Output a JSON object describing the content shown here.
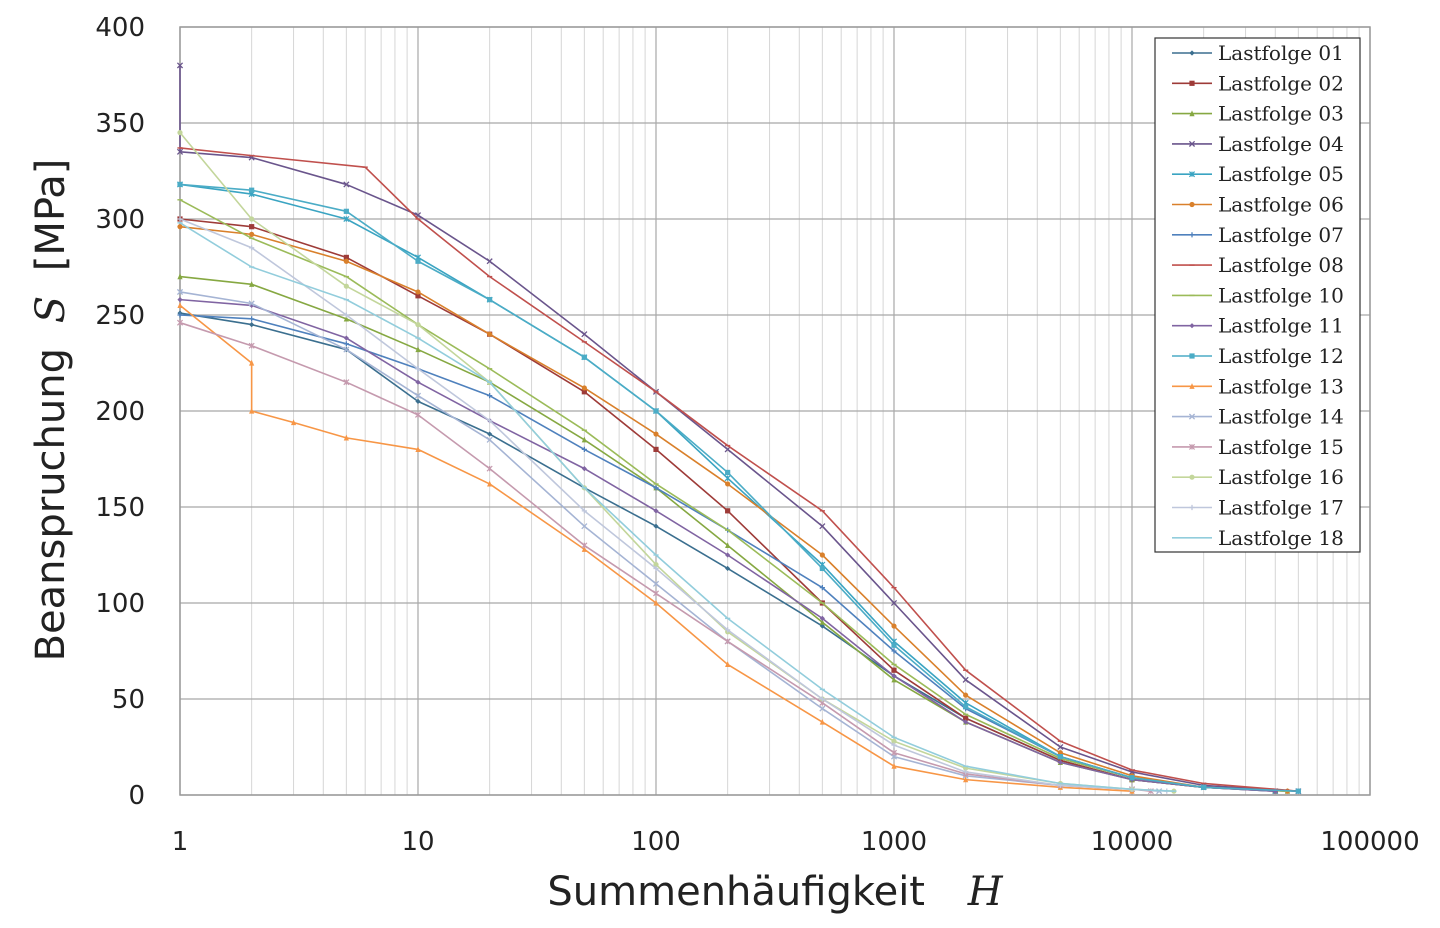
{
  "chart_data": {
    "type": "line",
    "xscale": "log",
    "xlim": [
      1,
      100000
    ],
    "ylim": [
      0,
      400
    ],
    "grid": true,
    "legend_position": "top-right",
    "xlabel": {
      "text": "Summenhäufigkeit",
      "symbol": "H"
    },
    "ylabel": {
      "text": "Beanspruchung",
      "symbol": "S",
      "unit": "[MPa]"
    },
    "x_ticks": [
      {
        "v": 1,
        "label": "1"
      },
      {
        "v": 10,
        "label": "10"
      },
      {
        "v": 100,
        "label": "100"
      },
      {
        "v": 1000,
        "label": "1000"
      },
      {
        "v": 10000,
        "label": "10000"
      },
      {
        "v": 100000,
        "label": "100000"
      }
    ],
    "y_ticks": [
      {
        "v": 0,
        "label": "0"
      },
      {
        "v": 50,
        "label": "50"
      },
      {
        "v": 100,
        "label": "100"
      },
      {
        "v": 150,
        "label": "150"
      },
      {
        "v": 200,
        "label": "200"
      },
      {
        "v": 250,
        "label": "250"
      },
      {
        "v": 300,
        "label": "300"
      },
      {
        "v": 350,
        "label": "350"
      },
      {
        "v": 400,
        "label": "400"
      }
    ],
    "series": [
      {
        "name": "Lastfolge 01",
        "color": "#3b6f8f",
        "marker": "diamond",
        "points": [
          [
            1,
            251
          ],
          [
            2,
            245
          ],
          [
            5,
            232
          ],
          [
            10,
            205
          ],
          [
            20,
            188
          ],
          [
            50,
            160
          ],
          [
            100,
            140
          ],
          [
            200,
            118
          ],
          [
            500,
            88
          ],
          [
            1000,
            62
          ],
          [
            2000,
            40
          ],
          [
            5000,
            18
          ],
          [
            10000,
            8
          ],
          [
            20000,
            4
          ],
          [
            50000,
            2
          ]
        ]
      },
      {
        "name": "Lastfolge 02",
        "color": "#9e3b38",
        "marker": "square",
        "points": [
          [
            1,
            300
          ],
          [
            2,
            296
          ],
          [
            5,
            280
          ],
          [
            10,
            260
          ],
          [
            20,
            240
          ],
          [
            50,
            210
          ],
          [
            100,
            180
          ],
          [
            200,
            148
          ],
          [
            500,
            100
          ],
          [
            1000,
            65
          ],
          [
            2000,
            40
          ],
          [
            5000,
            18
          ],
          [
            10000,
            8
          ],
          [
            20000,
            4
          ],
          [
            40000,
            2
          ]
        ]
      },
      {
        "name": "Lastfolge 03",
        "color": "#86a842",
        "marker": "triangle",
        "points": [
          [
            1,
            270
          ],
          [
            2,
            266
          ],
          [
            5,
            248
          ],
          [
            10,
            232
          ],
          [
            20,
            215
          ],
          [
            50,
            185
          ],
          [
            100,
            160
          ],
          [
            200,
            130
          ],
          [
            500,
            90
          ],
          [
            1000,
            60
          ],
          [
            2000,
            38
          ],
          [
            5000,
            17
          ],
          [
            10000,
            8
          ],
          [
            20000,
            4
          ],
          [
            45000,
            2
          ]
        ]
      },
      {
        "name": "Lastfolge 04",
        "color": "#6a558c",
        "marker": "x",
        "points": [
          [
            1,
            380
          ],
          [
            1,
            335
          ],
          [
            2,
            332
          ],
          [
            5,
            318
          ],
          [
            10,
            302
          ],
          [
            20,
            278
          ],
          [
            50,
            240
          ],
          [
            100,
            210
          ],
          [
            200,
            180
          ],
          [
            500,
            140
          ],
          [
            1000,
            100
          ],
          [
            2000,
            60
          ],
          [
            5000,
            25
          ],
          [
            10000,
            12
          ],
          [
            20000,
            5
          ],
          [
            50000,
            2
          ]
        ]
      },
      {
        "name": "Lastfolge 05",
        "color": "#3aa4c2",
        "marker": "star",
        "points": [
          [
            1,
            318
          ],
          [
            2,
            313
          ],
          [
            5,
            300
          ],
          [
            10,
            280
          ],
          [
            20,
            258
          ],
          [
            50,
            228
          ],
          [
            100,
            200
          ],
          [
            200,
            165
          ],
          [
            500,
            120
          ],
          [
            1000,
            80
          ],
          [
            2000,
            48
          ],
          [
            5000,
            20
          ],
          [
            10000,
            9
          ],
          [
            20000,
            4
          ],
          [
            40000,
            2
          ]
        ]
      },
      {
        "name": "Lastfolge 06",
        "color": "#d9802b",
        "marker": "circle",
        "points": [
          [
            1,
            296
          ],
          [
            2,
            292
          ],
          [
            5,
            278
          ],
          [
            10,
            262
          ],
          [
            20,
            240
          ],
          [
            50,
            212
          ],
          [
            100,
            188
          ],
          [
            200,
            162
          ],
          [
            500,
            125
          ],
          [
            1000,
            88
          ],
          [
            2000,
            52
          ],
          [
            5000,
            22
          ],
          [
            10000,
            10
          ],
          [
            20000,
            4
          ],
          [
            45000,
            2
          ]
        ]
      },
      {
        "name": "Lastfolge 07",
        "color": "#4f81bd",
        "marker": "plus",
        "points": [
          [
            1,
            250
          ],
          [
            2,
            248
          ],
          [
            5,
            235
          ],
          [
            10,
            222
          ],
          [
            20,
            208
          ],
          [
            50,
            180
          ],
          [
            100,
            160
          ],
          [
            200,
            138
          ],
          [
            500,
            108
          ],
          [
            1000,
            75
          ],
          [
            2000,
            45
          ],
          [
            5000,
            20
          ],
          [
            10000,
            9
          ],
          [
            20000,
            4
          ],
          [
            50000,
            2
          ]
        ]
      },
      {
        "name": "Lastfolge 08",
        "color": "#c0504d",
        "marker": "dash",
        "points": [
          [
            1,
            337
          ],
          [
            2,
            333
          ],
          [
            6,
            327
          ],
          [
            10,
            300
          ],
          [
            20,
            270
          ],
          [
            50,
            236
          ],
          [
            100,
            210
          ],
          [
            200,
            182
          ],
          [
            500,
            148
          ],
          [
            1000,
            108
          ],
          [
            2000,
            65
          ],
          [
            5000,
            28
          ],
          [
            10000,
            13
          ],
          [
            20000,
            6
          ],
          [
            50000,
            2
          ]
        ]
      },
      {
        "name": "Lastfolge 10",
        "color": "#9bbb59",
        "marker": "dash",
        "points": [
          [
            1,
            310
          ],
          [
            2,
            290
          ],
          [
            5,
            270
          ],
          [
            10,
            245
          ],
          [
            20,
            222
          ],
          [
            50,
            190
          ],
          [
            100,
            162
          ],
          [
            200,
            138
          ],
          [
            500,
            100
          ],
          [
            1000,
            68
          ],
          [
            2000,
            42
          ],
          [
            5000,
            19
          ],
          [
            10000,
            9
          ],
          [
            20000,
            4
          ],
          [
            45000,
            2
          ]
        ]
      },
      {
        "name": "Lastfolge 11",
        "color": "#8064a2",
        "marker": "diamond",
        "points": [
          [
            1,
            258
          ],
          [
            2,
            255
          ],
          [
            5,
            238
          ],
          [
            10,
            215
          ],
          [
            20,
            195
          ],
          [
            50,
            170
          ],
          [
            100,
            148
          ],
          [
            200,
            125
          ],
          [
            500,
            92
          ],
          [
            1000,
            62
          ],
          [
            2000,
            38
          ],
          [
            5000,
            17
          ],
          [
            10000,
            8
          ],
          [
            20000,
            4
          ],
          [
            40000,
            2
          ]
        ]
      },
      {
        "name": "Lastfolge 12",
        "color": "#4bacc6",
        "marker": "square",
        "points": [
          [
            1,
            318
          ],
          [
            2,
            315
          ],
          [
            5,
            304
          ],
          [
            10,
            278
          ],
          [
            20,
            258
          ],
          [
            50,
            228
          ],
          [
            100,
            200
          ],
          [
            200,
            168
          ],
          [
            500,
            118
          ],
          [
            1000,
            78
          ],
          [
            2000,
            46
          ],
          [
            5000,
            20
          ],
          [
            10000,
            9
          ],
          [
            20000,
            4
          ],
          [
            50000,
            2
          ]
        ]
      },
      {
        "name": "Lastfolge 13",
        "color": "#f79646",
        "marker": "triangle",
        "points": [
          [
            1,
            255
          ],
          [
            2,
            225
          ],
          [
            2,
            200
          ],
          [
            3,
            194
          ],
          [
            5,
            186
          ],
          [
            10,
            180
          ],
          [
            20,
            162
          ],
          [
            50,
            128
          ],
          [
            100,
            100
          ],
          [
            200,
            68
          ],
          [
            500,
            38
          ],
          [
            1000,
            15
          ],
          [
            2000,
            8
          ],
          [
            5000,
            4
          ],
          [
            10000,
            2
          ]
        ]
      },
      {
        "name": "Lastfolge 14",
        "color": "#a5b4d4",
        "marker": "x",
        "points": [
          [
            1,
            262
          ],
          [
            2,
            256
          ],
          [
            5,
            232
          ],
          [
            10,
            208
          ],
          [
            20,
            185
          ],
          [
            50,
            140
          ],
          [
            100,
            110
          ],
          [
            200,
            80
          ],
          [
            500,
            45
          ],
          [
            1000,
            20
          ],
          [
            2000,
            10
          ],
          [
            5000,
            5
          ],
          [
            10000,
            3
          ],
          [
            13000,
            2
          ]
        ]
      },
      {
        "name": "Lastfolge 15",
        "color": "#c59aae",
        "marker": "star",
        "points": [
          [
            1,
            246
          ],
          [
            2,
            234
          ],
          [
            5,
            215
          ],
          [
            10,
            198
          ],
          [
            20,
            170
          ],
          [
            50,
            130
          ],
          [
            100,
            105
          ],
          [
            200,
            80
          ],
          [
            500,
            48
          ],
          [
            1000,
            22
          ],
          [
            2000,
            11
          ],
          [
            5000,
            5
          ],
          [
            10000,
            3
          ],
          [
            12000,
            2
          ]
        ]
      },
      {
        "name": "Lastfolge 16",
        "color": "#c3d69b",
        "marker": "circle",
        "points": [
          [
            1,
            345
          ],
          [
            2,
            300
          ],
          [
            5,
            265
          ],
          [
            10,
            245
          ],
          [
            20,
            215
          ],
          [
            50,
            160
          ],
          [
            100,
            120
          ],
          [
            200,
            85
          ],
          [
            500,
            50
          ],
          [
            1000,
            28
          ],
          [
            2000,
            14
          ],
          [
            5000,
            6
          ],
          [
            10000,
            3
          ],
          [
            15000,
            2
          ]
        ]
      },
      {
        "name": "Lastfolge 17",
        "color": "#bfc7dc",
        "marker": "plus",
        "points": [
          [
            1,
            300
          ],
          [
            2,
            285
          ],
          [
            5,
            250
          ],
          [
            10,
            222
          ],
          [
            20,
            195
          ],
          [
            50,
            148
          ],
          [
            100,
            118
          ],
          [
            200,
            86
          ],
          [
            500,
            50
          ],
          [
            1000,
            26
          ],
          [
            2000,
            12
          ],
          [
            5000,
            5
          ],
          [
            10000,
            3
          ],
          [
            14000,
            2
          ]
        ]
      },
      {
        "name": "Lastfolge 18",
        "color": "#92cddc",
        "marker": "dash",
        "points": [
          [
            1,
            298
          ],
          [
            2,
            275
          ],
          [
            5,
            258
          ],
          [
            10,
            238
          ],
          [
            20,
            215
          ],
          [
            50,
            160
          ],
          [
            100,
            125
          ],
          [
            200,
            92
          ],
          [
            500,
            55
          ],
          [
            1000,
            30
          ],
          [
            2000,
            15
          ],
          [
            5000,
            6
          ],
          [
            10000,
            3
          ],
          [
            15000,
            2
          ]
        ]
      }
    ]
  }
}
